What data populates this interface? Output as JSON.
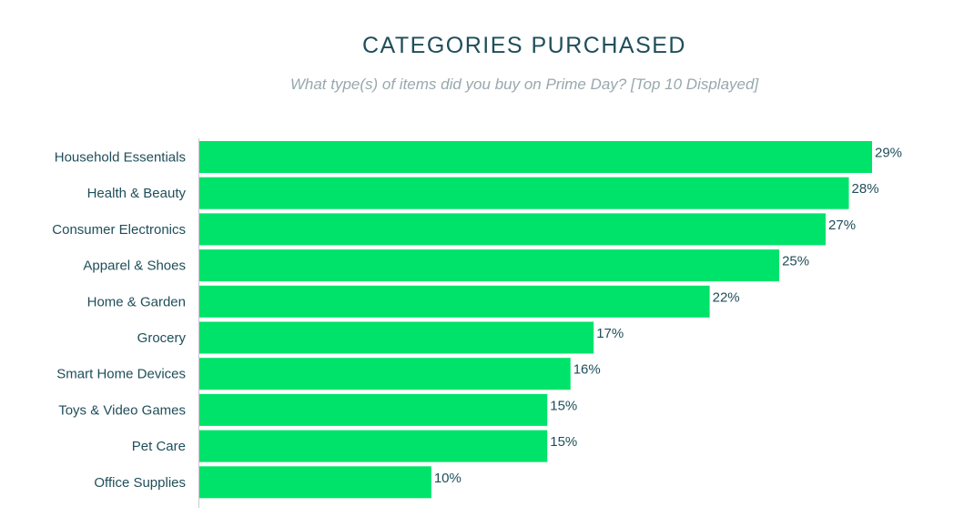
{
  "chart_data": {
    "type": "bar",
    "orientation": "horizontal",
    "title": "CATEGORIES PURCHASED",
    "subtitle": "What type(s) of items did you buy on Prime Day? [Top 10 Displayed]",
    "categories": [
      "Household Essentials",
      "Health & Beauty",
      "Consumer Electronics",
      "Apparel & Shoes",
      "Home & Garden",
      "Grocery",
      "Smart Home Devices",
      "Toys & Video Games",
      "Pet Care",
      "Office Supplies"
    ],
    "values": [
      29,
      28,
      27,
      25,
      22,
      17,
      16,
      15,
      15,
      10
    ],
    "value_labels": [
      "29%",
      "28%",
      "27%",
      "25%",
      "22%",
      "17%",
      "16%",
      "15%",
      "15%",
      "10%"
    ],
    "unit": "%",
    "xlim": [
      0,
      29
    ],
    "grid": false,
    "legend": "none",
    "bar_color": "#00e36a",
    "text_color": "#1f4e5a",
    "subtitle_color": "#98a8ad"
  }
}
